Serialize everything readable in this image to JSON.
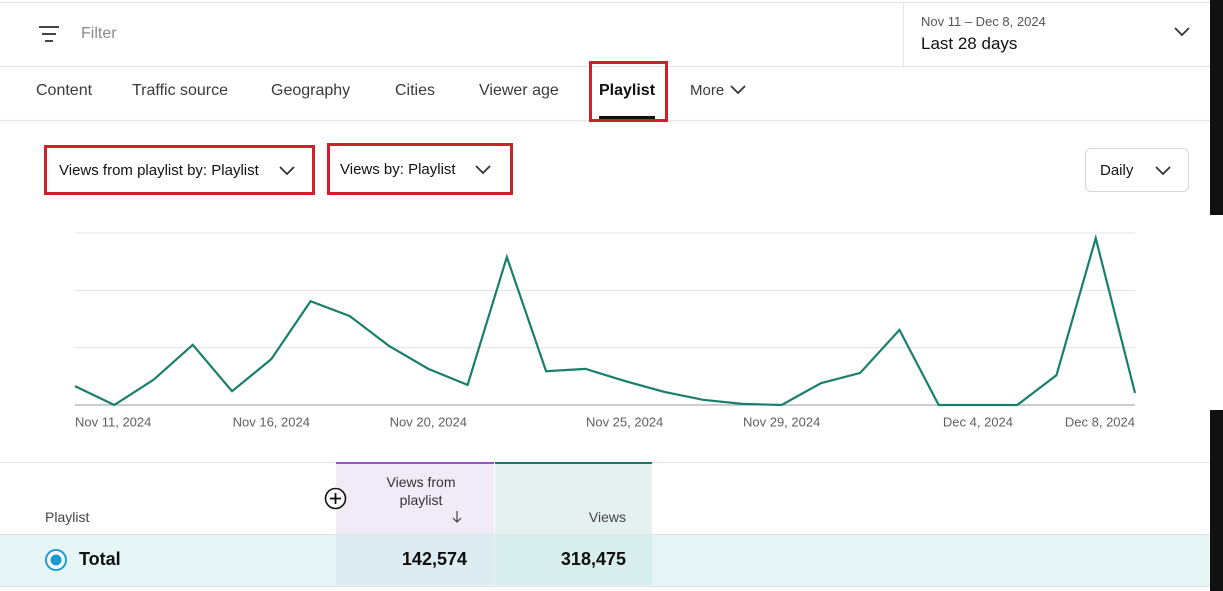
{
  "filter": {
    "placeholder": "Filter"
  },
  "date_range": {
    "range": "Nov 11 – Dec 8, 2024",
    "period": "Last 28 days"
  },
  "tabs": [
    "Content",
    "Traffic source",
    "Geography",
    "Cities",
    "Viewer age",
    "Playlist",
    "More"
  ],
  "selectors": [
    "Views from playlist by: Playlist",
    "Views by: Playlist"
  ],
  "interval": "Daily",
  "chart_data": {
    "type": "line",
    "categories": [
      "Nov 11, 2024",
      null,
      null,
      null,
      null,
      "Nov 16, 2024",
      null,
      null,
      null,
      "Nov 20, 2024",
      null,
      null,
      null,
      null,
      "Nov 25, 2024",
      null,
      null,
      null,
      "Nov 29, 2024",
      null,
      null,
      null,
      null,
      "Dec 4, 2024",
      null,
      null,
      null,
      "Dec 8, 2024"
    ],
    "series": [
      {
        "color": "#1a7f6a",
        "values": [
          0.33,
          0,
          0.44,
          1.05,
          0.24,
          0.8,
          1.81,
          1.55,
          1.03,
          0.63,
          0.35,
          2.58,
          0.59,
          0.63,
          0.42,
          0.23,
          0.09,
          0.02,
          0,
          0.38,
          0.56,
          1.31,
          0,
          0,
          0,
          0.52,
          2.91,
          0.21
        ]
      }
    ],
    "ylim": [
      0,
      3
    ],
    "yticks": [
      0,
      1,
      2,
      3
    ],
    "grid": true
  },
  "table": {
    "columns": [
      "Playlist",
      "Views from playlist",
      "Views"
    ],
    "rows": [
      [
        "Total",
        "142,574",
        "318,475"
      ]
    ]
  }
}
